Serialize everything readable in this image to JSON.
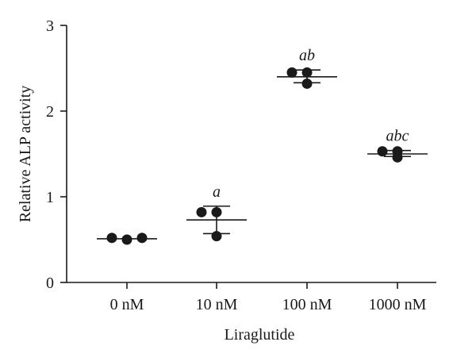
{
  "chart_data": {
    "type": "scatter",
    "xlabel": "Liraglutide",
    "ylabel": "Relative ALP activity",
    "ylim": [
      0,
      3
    ],
    "yticks": [
      "0",
      "1",
      "2",
      "3"
    ],
    "categories": [
      "0 nM",
      "10 nM",
      "100 nM",
      "1000 nM"
    ],
    "groups": [
      {
        "category": "0 nM",
        "points": [
          0.52,
          0.5,
          0.52
        ],
        "mean": 0.51,
        "sd_low": 0.51,
        "sd_high": 0.51,
        "annotation": ""
      },
      {
        "category": "10 nM",
        "points": [
          0.82,
          0.82,
          0.54
        ],
        "mean": 0.73,
        "sd_low": 0.57,
        "sd_high": 0.89,
        "annotation": "a"
      },
      {
        "category": "100 nM",
        "points": [
          2.45,
          2.45,
          2.32
        ],
        "mean": 2.4,
        "sd_low": 2.33,
        "sd_high": 2.48,
        "annotation": "ab"
      },
      {
        "category": "1000 nM",
        "points": [
          1.53,
          1.53,
          1.46
        ],
        "mean": 1.5,
        "sd_low": 1.47,
        "sd_high": 1.54,
        "annotation": "abc"
      }
    ],
    "legend": "none",
    "grid": false
  }
}
